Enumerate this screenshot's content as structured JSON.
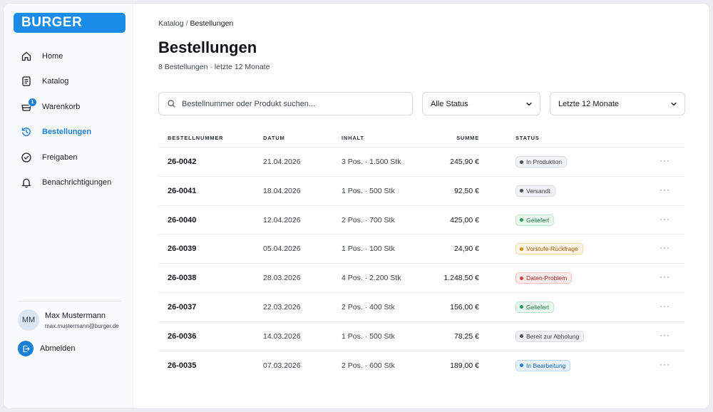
{
  "brand": {
    "logo_text": "BURGER",
    "accent": "#1a8ce8"
  },
  "sidebar": {
    "items": [
      {
        "key": "home",
        "label": "Home",
        "icon": "home-icon"
      },
      {
        "key": "katalog",
        "label": "Katalog",
        "icon": "document-icon"
      },
      {
        "key": "warenkorb",
        "label": "Warenkorb",
        "icon": "cart-icon",
        "badge": "1"
      },
      {
        "key": "bestellungen",
        "label": "Bestellungen",
        "icon": "history-icon",
        "active": true
      },
      {
        "key": "freigaben",
        "label": "Freigaben",
        "icon": "check-circle-icon"
      },
      {
        "key": "benachrichtigungen",
        "label": "Benachrichtigungen",
        "icon": "bell-icon"
      }
    ],
    "user": {
      "initials": "MM",
      "name": "Max Mustermann",
      "email": "max.mustermann@burger.de"
    },
    "logout_label": "Abmelden"
  },
  "breadcrumb": {
    "parent": "Katalog",
    "separator": "/",
    "current": "Bestellungen"
  },
  "page": {
    "title": "Bestellungen",
    "subtitle": "8 Bestellungen · letzte 12 Monate"
  },
  "filters": {
    "search_placeholder": "Bestellnummer oder Produkt suchen...",
    "status_value": "Alle Status",
    "period_value": "Letzte 12 Monate"
  },
  "table": {
    "headers": {
      "id": "Bestellnummer",
      "date": "Datum",
      "content": "Inhalt",
      "sum": "Summe",
      "status": "Status"
    },
    "rows": [
      {
        "id": "26-0042",
        "date": "21.04.2026",
        "content": "3 Pos. · 1.500 Stk",
        "sum": "245,90 €",
        "status": "In Produktion",
        "status_tone": "neutral"
      },
      {
        "id": "26-0041",
        "date": "18.04.2026",
        "content": "1 Pos. · 500 Stk",
        "sum": "92,50 €",
        "status": "Versandt",
        "status_tone": "neutral"
      },
      {
        "id": "26-0040",
        "date": "12.04.2026",
        "content": "2 Pos. · 700 Stk",
        "sum": "425,00 €",
        "status": "Geliefert",
        "status_tone": "green"
      },
      {
        "id": "26-0039",
        "date": "05.04.2026",
        "content": "1 Pos. · 100 Stk",
        "sum": "24,90 €",
        "status": "Vorstufe-Rückfrage",
        "status_tone": "orange"
      },
      {
        "id": "26-0038",
        "date": "28.03.2026",
        "content": "4 Pos. · 2.200 Stk",
        "sum": "1.248,50 €",
        "status": "Daten-Problem",
        "status_tone": "red"
      },
      {
        "id": "26-0037",
        "date": "22.03.2026",
        "content": "2 Pos. · 400 Stk",
        "sum": "156,00 €",
        "status": "Geliefert",
        "status_tone": "green"
      },
      {
        "id": "26-0036",
        "date": "14.03.2026",
        "content": "1 Pos. · 500 Stk",
        "sum": "78,25 €",
        "status": "Bereit zur Abholung",
        "status_tone": "neutral"
      },
      {
        "id": "26-0035",
        "date": "07.03.2026",
        "content": "2 Pos. · 600 Stk",
        "sum": "189,00 €",
        "status": "In Bearbeitung",
        "status_tone": "blue"
      }
    ],
    "row_menu": "···"
  },
  "status_tones": {
    "neutral": {
      "bg": "#f1f2f4",
      "border": "#d9dce1",
      "dot": "#4a5059",
      "text": "#3a3f47"
    },
    "green": {
      "bg": "#e9f8ef",
      "border": "#b9e6c9",
      "dot": "#1f9d55",
      "text": "#1b7a44"
    },
    "orange": {
      "bg": "#fff5e6",
      "border": "#f5d6a3",
      "dot": "#e08a12",
      "text": "#9a5a06"
    },
    "red": {
      "bg": "#fdecec",
      "border": "#f3c1c1",
      "dot": "#d63b3b",
      "text": "#a32525"
    },
    "blue": {
      "bg": "#e8f2fd",
      "border": "#b8d6f5",
      "dot": "#1a7fd6",
      "text": "#1565b0"
    }
  }
}
